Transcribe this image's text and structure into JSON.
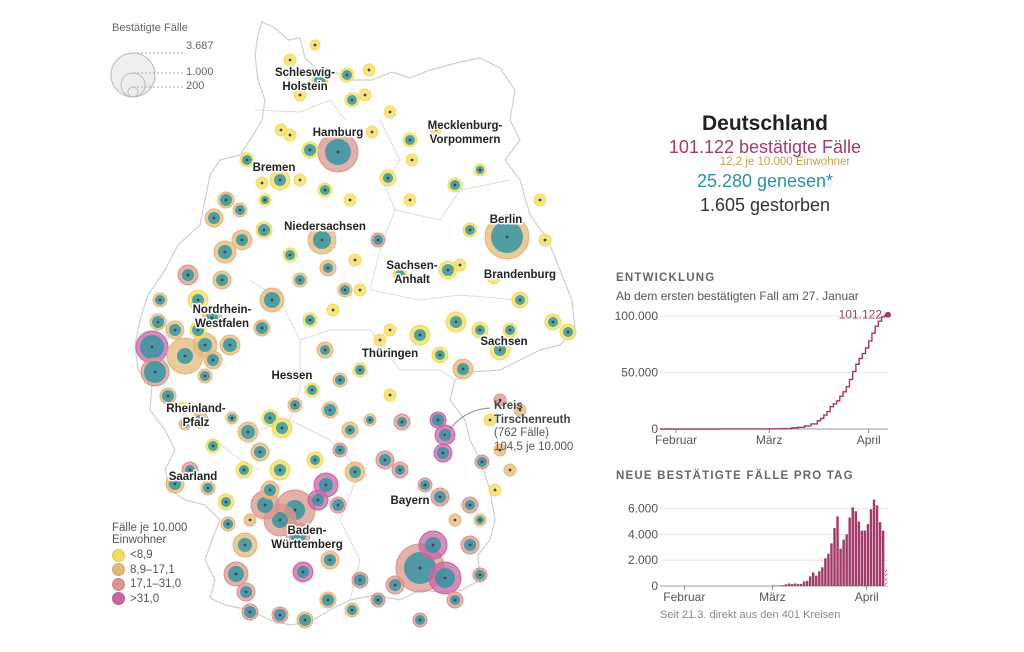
{
  "size_legend": {
    "title": "Bestätigte Fälle",
    "values": [
      "3.687",
      "1.000",
      "200"
    ]
  },
  "color_legend": {
    "title_line1": "Fälle je 10.000",
    "title_line2": "Einwohner",
    "items": [
      {
        "label": "<8,9",
        "color": "#f2dc5d"
      },
      {
        "label": "8,9–17,1",
        "color": "#e3b77a"
      },
      {
        "label": "17,1–31,0",
        "color": "#d9958e"
      },
      {
        "label": ">31,0",
        "color": "#c766a4"
      }
    ]
  },
  "regions": [
    {
      "name": "Schleswig-\nHolstein"
    },
    {
      "name": "Hamburg"
    },
    {
      "name": "Mecklenburg-\nVorpommern"
    },
    {
      "name": "Bremen"
    },
    {
      "name": "Niedersachsen"
    },
    {
      "name": "Berlin"
    },
    {
      "name": "Sachsen-\nAnhalt"
    },
    {
      "name": "Brandenburg"
    },
    {
      "name": "Nordrhein-\nWestfalen"
    },
    {
      "name": "Sachsen"
    },
    {
      "name": "Thüringen"
    },
    {
      "name": "Hessen"
    },
    {
      "name": "Rheinland-\nPfalz"
    },
    {
      "name": "Saarland"
    },
    {
      "name": "Bayern"
    },
    {
      "name": "Baden-\nWürttemberg"
    }
  ],
  "annotation": {
    "line1": "Kreis",
    "line2": "Tirschenreuth",
    "line3": "(762 Fälle)",
    "line4": "104,5 je 10.000"
  },
  "stats": {
    "title": "Deutschland",
    "cases": "101.122 bestätigte Fälle",
    "rate": "12,2  je 10.000 Einwohner",
    "recovered": "25.280 genesen*",
    "deaths": "1.605 gestorben",
    "colors": {
      "cases": "#a23a6a",
      "rate": "#c9a04a",
      "recovered": "#2a93a3",
      "deaths": "#333333"
    }
  },
  "chart_data": [
    {
      "type": "line",
      "section_title": "ENTWICKLUNG",
      "subtitle": "Ab dem ersten bestätigten Fall am 27. Januar",
      "xlabel": "",
      "ylabel": "",
      "x_ticks": [
        "Februar",
        "März",
        "April"
      ],
      "y_ticks": [
        "0",
        "50.000",
        "100.000"
      ],
      "ylim": [
        0,
        100000
      ],
      "x_range": [
        "2020-01-27",
        "2020-04-07"
      ],
      "end_label": "101.122",
      "series": [
        {
          "name": "Bestätigte Fälle kumuliert",
          "color": "#a23a6a",
          "x": [
            "2020-01-27",
            "2020-02-15",
            "2020-03-01",
            "2020-03-05",
            "2020-03-08",
            "2020-03-10",
            "2020-03-12",
            "2020-03-14",
            "2020-03-16",
            "2020-03-17",
            "2020-03-18",
            "2020-03-19",
            "2020-03-20",
            "2020-03-21",
            "2020-03-22",
            "2020-03-23",
            "2020-03-24",
            "2020-03-25",
            "2020-03-26",
            "2020-03-27",
            "2020-03-28",
            "2020-03-29",
            "2020-03-30",
            "2020-03-31",
            "2020-04-01",
            "2020-04-02",
            "2020-04-03",
            "2020-04-04",
            "2020-04-05",
            "2020-04-06",
            "2020-04-07"
          ],
          "values": [
            1,
            16,
            130,
            400,
            1000,
            1500,
            2700,
            4500,
            7200,
            9300,
            12300,
            15300,
            19800,
            22300,
            24900,
            29000,
            32900,
            37300,
            43900,
            50900,
            57300,
            62400,
            66800,
            71800,
            77900,
            84800,
            91000,
            95400,
            99200,
            100500,
            101122
          ]
        }
      ]
    },
    {
      "type": "bar",
      "section_title": "NEUE BESTÄTIGTE FÄLLE PRO TAG",
      "xlabel": "",
      "ylabel": "",
      "x_ticks": [
        "Februar",
        "März",
        "April"
      ],
      "y_ticks": [
        "0",
        "2.000",
        "4.000",
        "6.000"
      ],
      "ylim": [
        0,
        7000
      ],
      "first_bar_date": "2020-03-01",
      "color": "#a23a6a",
      "categories_note": "daily, 1 March to 7 April 2020",
      "values": [
        50,
        30,
        50,
        60,
        130,
        200,
        150,
        200,
        170,
        160,
        350,
        400,
        750,
        1050,
        800,
        1150,
        1450,
        2150,
        2500,
        3300,
        4500,
        5400,
        2900,
        3600,
        4000,
        5300,
        6100,
        5800,
        5000,
        4300,
        4300,
        4800,
        5950,
        6700,
        6250,
        4950,
        4300,
        1300
      ],
      "hatched_last": true,
      "footnote": "Seit 21.3. direkt aus den 401 Kreisen"
    }
  ]
}
